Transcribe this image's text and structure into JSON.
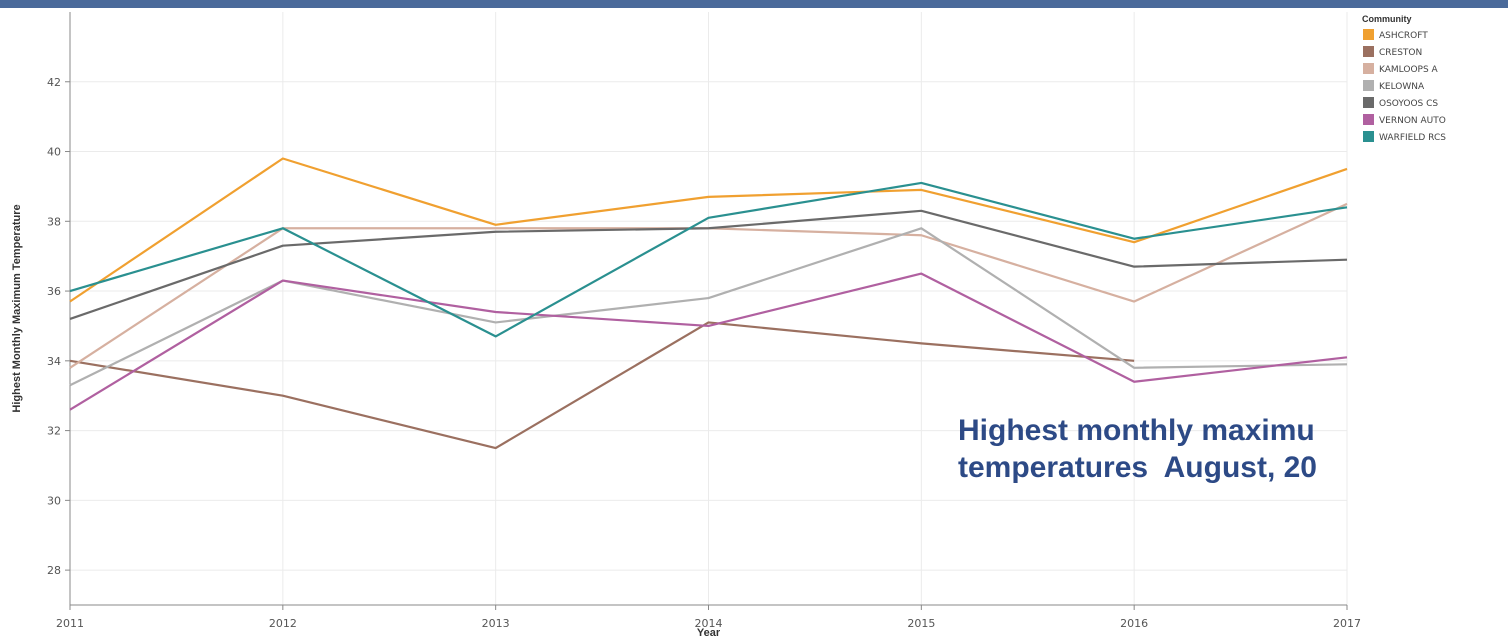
{
  "caption": {
    "line1": "Highest monthly maximu",
    "line2": "temperatures  August, 20"
  },
  "colors": {
    "top_bar": "#4a6a9a",
    "grid": "#ebebeb",
    "axis": "#888888",
    "caption": "#2d4a86"
  },
  "chart_data": {
    "type": "line",
    "xlabel": "Year",
    "ylabel": "Highest Monthly Maximum Temperature",
    "x": [
      2011,
      2012,
      2013,
      2014,
      2015,
      2016,
      2017
    ],
    "xlim": [
      2011,
      2017
    ],
    "ylim": [
      27,
      44
    ],
    "y_ticks": [
      28,
      30,
      32,
      34,
      36,
      38,
      40,
      42
    ],
    "grid": true,
    "legend": {
      "title": "Community",
      "position": "top-right"
    },
    "series": [
      {
        "name": "ASHCROFT",
        "color": "#f0a030",
        "values": [
          35.7,
          39.8,
          37.9,
          38.7,
          38.9,
          37.4,
          39.5
        ]
      },
      {
        "name": "CRESTON",
        "color": "#9b7060",
        "values": [
          34.0,
          33.0,
          31.5,
          35.1,
          34.5,
          34.0,
          null
        ]
      },
      {
        "name": "KAMLOOPS A",
        "color": "#d6b0a0",
        "values": [
          33.8,
          37.8,
          37.8,
          37.8,
          37.6,
          35.7,
          38.5
        ]
      },
      {
        "name": "KELOWNA",
        "color": "#b0b0b0",
        "values": [
          33.3,
          36.3,
          35.1,
          35.8,
          37.8,
          33.8,
          33.9
        ]
      },
      {
        "name": "OSOYOOS CS",
        "color": "#6a6a6a",
        "values": [
          35.2,
          37.3,
          37.7,
          37.8,
          38.3,
          36.7,
          36.9
        ]
      },
      {
        "name": "VERNON AUTO",
        "color": "#b060a0",
        "values": [
          32.6,
          36.3,
          35.4,
          35.0,
          36.5,
          33.4,
          34.1
        ]
      },
      {
        "name": "WARFIELD RCS",
        "color": "#2a9090",
        "values": [
          36.0,
          37.8,
          34.7,
          38.1,
          39.1,
          37.5,
          38.4
        ]
      }
    ]
  }
}
